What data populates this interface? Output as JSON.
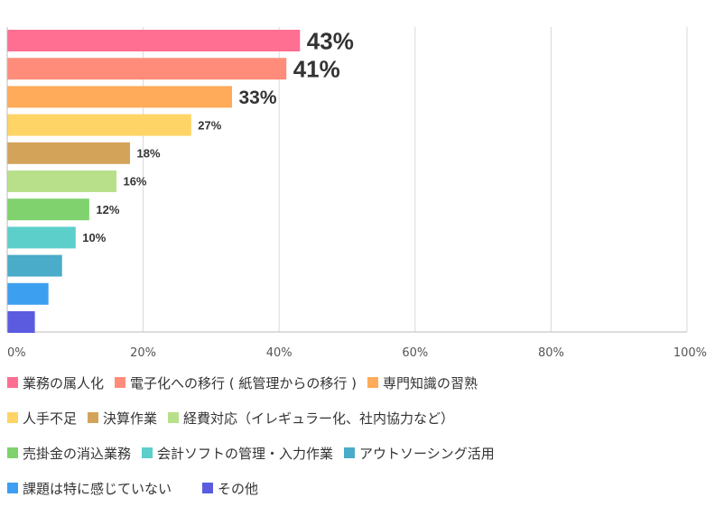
{
  "chart_data": {
    "type": "bar",
    "orientation": "horizontal",
    "xlim": [
      0,
      100
    ],
    "grid": true,
    "legend_placement": "bottom",
    "x_ticks": [
      "0%",
      "20%",
      "40%",
      "60%",
      "80%",
      "100%"
    ],
    "categories": [
      "業務の属人化",
      "電子化への移行（紙管理からの移行）",
      "専門知識の習熟",
      "人手不足",
      "決算作業",
      "経費対応（イレギュラー化、社内協力など）",
      "売掛金の消込業務",
      "会計ソフトの管理・入力作業",
      "アウトソーシング活用",
      "課題は特に感じていない",
      "その他"
    ],
    "values": [
      43,
      41,
      33,
      27,
      18,
      16,
      12,
      10,
      8,
      6,
      4
    ],
    "value_labels": [
      "43%",
      "41%",
      "33%",
      "27%",
      "18%",
      "16%",
      "12%",
      "10%",
      "",
      "",
      ""
    ],
    "colors": [
      "#fe6f92",
      "#ff8c7a",
      "#ffab5a",
      "#ffd466",
      "#d4a35a",
      "#b8e08a",
      "#7fd26e",
      "#5ccfcb",
      "#4aacc8",
      "#3d9ff0",
      "#5b5be0"
    ]
  },
  "legend": {
    "rows": [
      [
        {
          "label": "業務の属人化",
          "color": "#fe6f92"
        },
        {
          "label": "電子化への移行 ( 紙管理からの移行 )",
          "color": "#ff8c7a"
        },
        {
          "label": "専門知識の習熟",
          "color": "#ffab5a"
        }
      ],
      [
        {
          "label": "人手不足",
          "color": "#ffd466"
        },
        {
          "label": "決算作業",
          "color": "#d4a35a"
        },
        {
          "label": "経費対応（イレギュラー化、社内協力など）",
          "color": "#b8e08a"
        }
      ],
      [
        {
          "label": "売掛金の消込業務",
          "color": "#7fd26e"
        },
        {
          "label": "会計ソフトの管理・入力作業",
          "color": "#5ccfcb"
        },
        {
          "label": "アウトソーシング活用",
          "color": "#4aacc8"
        }
      ],
      [
        {
          "label": "課題は特に感じていない",
          "color": "#3d9ff0"
        },
        {
          "label": "その他",
          "color": "#5b5be0"
        }
      ]
    ]
  }
}
